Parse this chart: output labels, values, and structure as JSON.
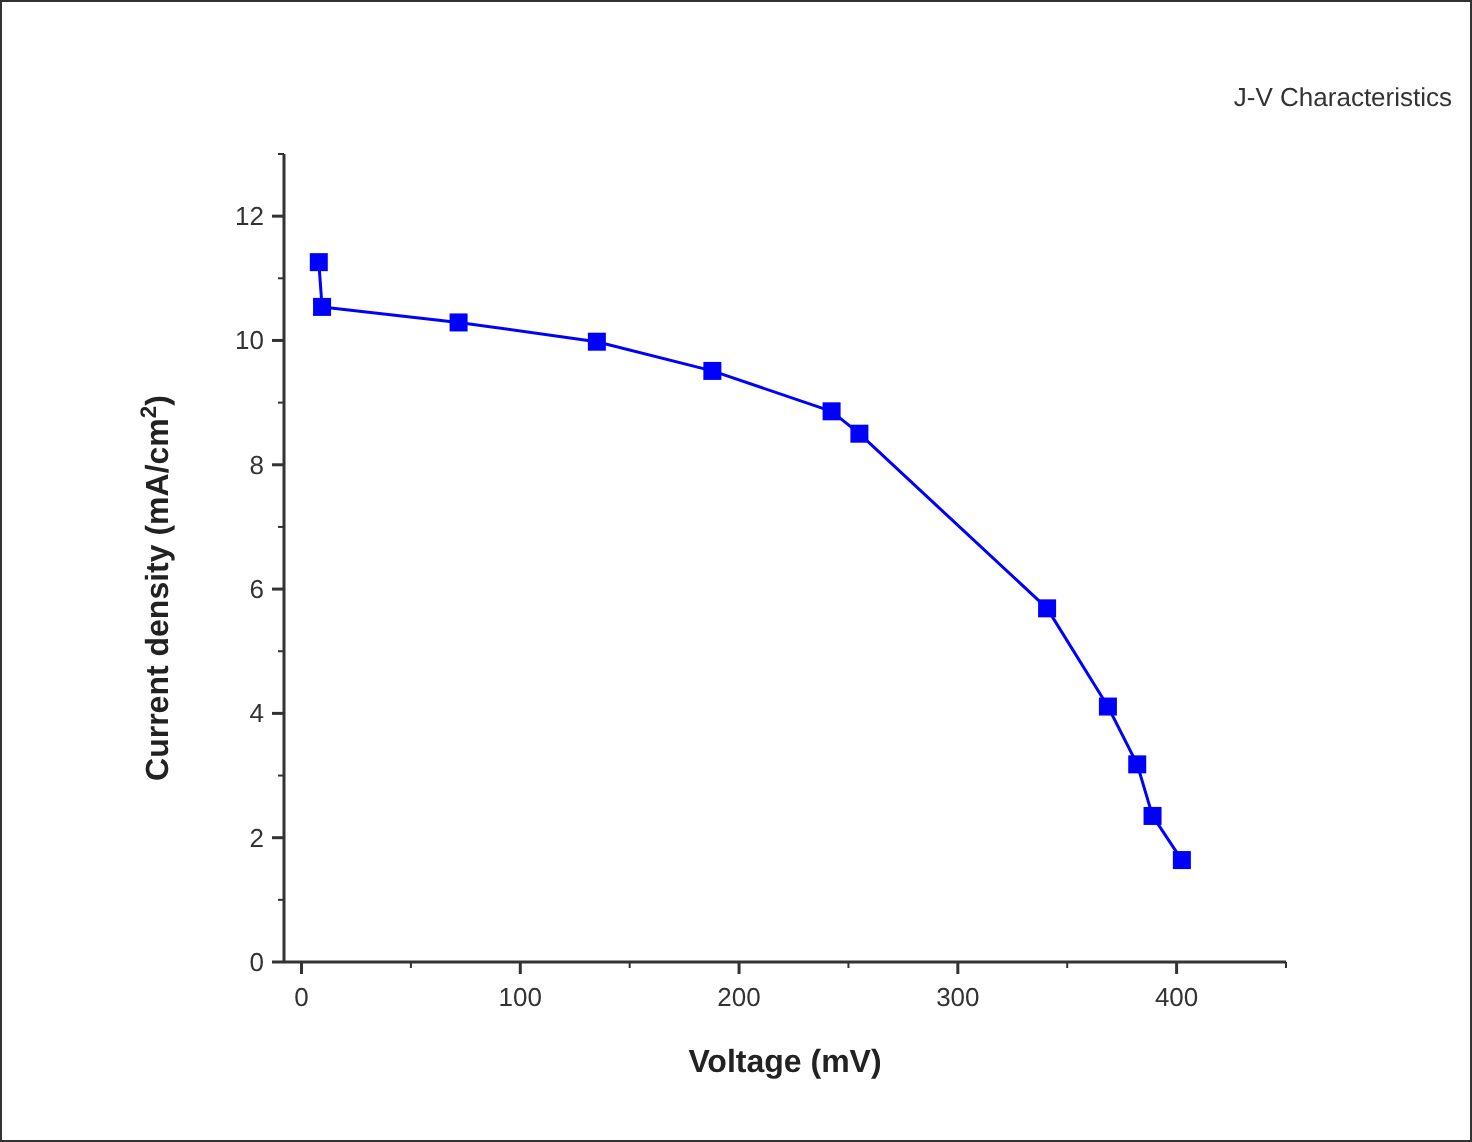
{
  "chart_data": {
    "type": "line",
    "title": "J-V Characteristics",
    "xlabel": "Voltage (mV)",
    "ylabel": "Current density (mA/cm$^{2}$)",
    "x": [
      7.9,
      9.4,
      71.8,
      135,
      187.8,
      242.3,
      255,
      340.8,
      368.6,
      382,
      389,
      402.4
    ],
    "series": [
      {
        "color": "#0000ff",
        "values": [
          11.26,
          10.54,
          10.29,
          9.98,
          9.51,
          8.86,
          8.5,
          5.69,
          4.11,
          3.18,
          2.35,
          1.64
        ]
      }
    ],
    "xlim": [
      -8,
      450
    ],
    "xticks": [
      0,
      100,
      200,
      300,
      400
    ],
    "ylim": [
      0,
      13
    ],
    "yticks": [
      0,
      2,
      4,
      6,
      8,
      10,
      12
    ],
    "marker": "square",
    "line_style": "solid",
    "grid": false
  }
}
